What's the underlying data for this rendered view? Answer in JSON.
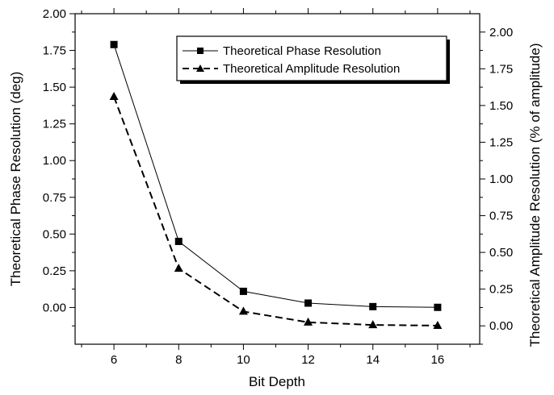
{
  "chart_data": {
    "type": "line",
    "xlabel": "Bit Depth",
    "ylabel": "Theoretical Phase Resolution (deg)",
    "y2label": "Theoretical Amplitude Resolution (% of amplitude)",
    "x": [
      6,
      8,
      10,
      12,
      14,
      16
    ],
    "x_ticks": [
      "6",
      "8",
      "10",
      "12",
      "14",
      "16"
    ],
    "xlim": [
      4.8,
      17.3
    ],
    "ylim": [
      -0.25,
      2.0
    ],
    "y_ticks": [
      "0.00",
      "0.25",
      "0.50",
      "0.75",
      "1.00",
      "1.25",
      "1.50",
      "1.75",
      "2.00"
    ],
    "y2lim": [
      -0.125,
      2.125
    ],
    "y2_ticks": [
      "0.00",
      "0.25",
      "0.50",
      "0.75",
      "1.00",
      "1.25",
      "1.50",
      "1.75",
      "2.00"
    ],
    "grid": false,
    "legend_position": "top-right",
    "series": [
      {
        "name": "Theoretical Phase Resolution",
        "axis": "left",
        "values": [
          1.79,
          0.45,
          0.11,
          0.03,
          0.006,
          0.001
        ],
        "marker": "square",
        "line_style": "solid",
        "color": "#000000"
      },
      {
        "name": "Theoretical Amplitude Resolution",
        "axis": "right",
        "values": [
          1.56,
          0.39,
          0.098,
          0.024,
          0.006,
          0.0015
        ],
        "marker": "triangle",
        "line_style": "dashed",
        "color": "#000000"
      }
    ]
  }
}
